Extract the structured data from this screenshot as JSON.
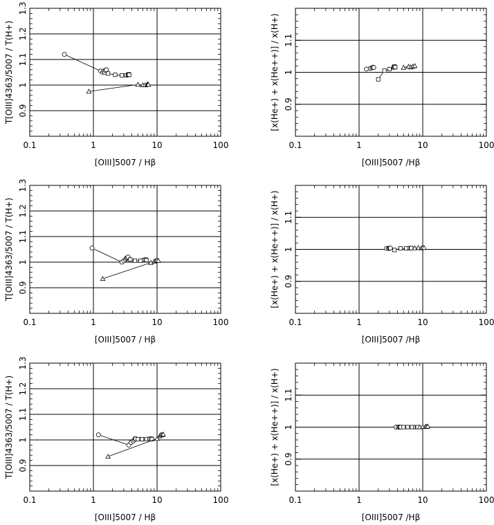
{
  "chart_data": [
    {
      "type": "scatter",
      "xscale": "log",
      "xlim": [
        0.1,
        100
      ],
      "ylim": [
        0.8,
        1.3
      ],
      "xticks": [
        "0.1",
        "1",
        "10",
        "100"
      ],
      "yticks": [
        "0.9",
        "1",
        "1.1",
        "1.2",
        "1.3"
      ],
      "hlines": [
        0.9,
        1.0,
        1.1,
        1.2
      ],
      "vlines": [
        1,
        10
      ],
      "xlabel": "[OIII]5007 / Hβ",
      "ylabel": "T[OIII]4363/5007 / T(H+)",
      "grid": false,
      "series": [
        {
          "marker": "circle",
          "x": [
            0.35,
            1.3,
            1.4,
            1.45,
            1.5,
            1.55,
            1.6
          ],
          "y": [
            1.12,
            1.055,
            1.05,
            1.055,
            1.05,
            1.057,
            1.06
          ]
        },
        {
          "marker": "square",
          "x": [
            1.7,
            2.2,
            2.8,
            3.3,
            3.5,
            3.6,
            3.65
          ],
          "y": [
            1.045,
            1.04,
            1.038,
            1.038,
            1.04,
            1.042,
            1.04
          ]
        },
        {
          "marker": "triangle",
          "x": [
            0.85,
            5.0,
            6.0,
            6.5,
            7.0,
            7.2,
            7.3
          ],
          "y": [
            0.975,
            1.002,
            1.0,
            1.0,
            1.002,
            1.003,
            1.002
          ]
        }
      ]
    },
    {
      "type": "scatter",
      "xscale": "log",
      "xlim": [
        0.1,
        100
      ],
      "ylim": [
        0.8,
        1.2
      ],
      "xticks": [
        "0.1",
        "1",
        "10",
        "100"
      ],
      "yticks": [
        "0.9",
        "1",
        "1.1"
      ],
      "hlines": [
        0.9,
        1.0,
        1.1
      ],
      "vlines": [
        1,
        10
      ],
      "xlabel": "[OIII]5007 /Hβ",
      "ylabel": "[x(He+) + x(He++)] / x(H+)",
      "grid": false,
      "series": [
        {
          "marker": "circle",
          "x": [
            1.3,
            1.5,
            1.6,
            1.65,
            1.7
          ],
          "y": [
            1.01,
            1.012,
            1.014,
            1.016,
            1.015
          ]
        },
        {
          "marker": "square",
          "x": [
            2.0,
            2.5,
            3.0,
            3.5,
            3.6,
            3.7
          ],
          "y": [
            0.978,
            1.005,
            1.01,
            1.015,
            1.018,
            1.016
          ]
        },
        {
          "marker": "triangle",
          "x": [
            5.0,
            6.0,
            6.5,
            7.0,
            7.5
          ],
          "y": [
            1.015,
            1.018,
            1.016,
            1.018,
            1.02
          ]
        }
      ]
    },
    {
      "type": "scatter",
      "xscale": "log",
      "xlim": [
        0.1,
        100
      ],
      "ylim": [
        0.8,
        1.3
      ],
      "xticks": [
        "0.1",
        "1",
        "10",
        "100"
      ],
      "yticks": [
        "0.9",
        "1",
        "1.1",
        "1.2",
        "1.3"
      ],
      "hlines": [
        0.9,
        1.0,
        1.1,
        1.2
      ],
      "vlines": [
        1,
        10
      ],
      "xlabel": "[OIII]5007 / Hβ",
      "ylabel": "T[OIII]4363/5007 / T(H+)",
      "grid": false,
      "series": [
        {
          "marker": "circle",
          "x": [
            0.95,
            2.8,
            3.0,
            3.2,
            3.3,
            3.4,
            3.5
          ],
          "y": [
            1.055,
            1.0,
            1.005,
            1.01,
            1.015,
            1.018,
            1.02
          ]
        },
        {
          "marker": "square",
          "x": [
            3.8,
            4.5,
            5.5,
            6.2,
            6.6,
            6.8
          ],
          "y": [
            1.01,
            1.006,
            1.006,
            1.008,
            1.01,
            1.008
          ]
        },
        {
          "marker": "triangle",
          "x": [
            1.4,
            8.0,
            9.0,
            9.5,
            10.0,
            10.5
          ],
          "y": [
            0.935,
            0.998,
            1.003,
            1.005,
            1.008,
            1.006
          ]
        }
      ]
    },
    {
      "type": "scatter",
      "xscale": "log",
      "xlim": [
        0.1,
        100
      ],
      "ylim": [
        0.8,
        1.2
      ],
      "xticks": [
        "0.1",
        "1",
        "10",
        "100"
      ],
      "yticks": [
        "0.9",
        "1",
        "1.1"
      ],
      "hlines": [
        0.9,
        1.0,
        1.1
      ],
      "vlines": [
        1,
        10
      ],
      "xlabel": "[OIII]5007 /Hβ",
      "ylabel": "[x(He+) + x(He++)] / x(H+)",
      "grid": false,
      "series": [
        {
          "marker": "circle",
          "x": [
            2.7,
            2.9,
            3.0,
            3.05,
            3.1
          ],
          "y": [
            1.003,
            1.003,
            1.004,
            1.003,
            1.004
          ]
        },
        {
          "marker": "square",
          "x": [
            3.6,
            4.5,
            5.5,
            6.2,
            6.5,
            6.6
          ],
          "y": [
            0.998,
            1.003,
            1.003,
            1.004,
            1.004,
            1.004
          ]
        },
        {
          "marker": "triangle",
          "x": [
            7.5,
            8.5,
            9.5,
            10.0,
            10.5
          ],
          "y": [
            1.004,
            1.005,
            1.004,
            1.006,
            1.005
          ]
        }
      ]
    },
    {
      "type": "scatter",
      "xscale": "log",
      "xlim": [
        0.1,
        100
      ],
      "ylim": [
        0.8,
        1.3
      ],
      "xticks": [
        "0.1",
        "1",
        "10",
        "100"
      ],
      "yticks": [
        "0.9",
        "1",
        "1.1",
        "1.2",
        "1.3"
      ],
      "hlines": [
        0.9,
        1.0,
        1.1,
        1.2
      ],
      "vlines": [
        1,
        10
      ],
      "xlabel": "[OIII]5007 / Hβ",
      "ylabel": "T[OIII]4363/5007 / T(H+)",
      "grid": false,
      "series": [
        {
          "marker": "circle",
          "x": [
            1.2,
            3.6,
            3.9,
            4.2,
            4.4,
            4.5,
            4.6
          ],
          "y": [
            1.02,
            0.98,
            0.99,
            0.995,
            1.0,
            1.005,
            1.005
          ]
        },
        {
          "marker": "square",
          "x": [
            5.0,
            5.8,
            6.8,
            7.6,
            8.0,
            8.3
          ],
          "y": [
            1.003,
            1.003,
            1.003,
            1.004,
            1.005,
            1.003
          ]
        },
        {
          "marker": "triangle",
          "x": [
            1.7,
            10.0,
            11.0,
            11.5,
            12.0,
            12.5
          ],
          "y": [
            0.935,
            1.005,
            1.015,
            1.02,
            1.02,
            1.022
          ]
        }
      ]
    },
    {
      "type": "scatter",
      "xscale": "log",
      "xlim": [
        0.1,
        100
      ],
      "ylim": [
        0.8,
        1.2
      ],
      "xticks": [
        "0.1",
        "1",
        "10",
        "100"
      ],
      "yticks": [
        "0.9",
        "1",
        "1.1"
      ],
      "hlines": [
        0.9,
        1.0,
        1.1
      ],
      "vlines": [
        1,
        10
      ],
      "xlabel": "[OIII]5007 /Hβ",
      "ylabel": "[x(He+) + x(He++)] / x(H+)",
      "grid": false,
      "series": [
        {
          "marker": "circle",
          "x": [
            3.8,
            4.1,
            4.3,
            4.4,
            4.5
          ],
          "y": [
            1.0,
            1.0,
            1.0,
            1.0,
            1.0
          ]
        },
        {
          "marker": "square",
          "x": [
            5.0,
            5.8,
            6.8,
            7.6,
            8.1,
            8.3
          ],
          "y": [
            1.0,
            1.0,
            1.0,
            1.0,
            1.0,
            1.0
          ]
        },
        {
          "marker": "triangle",
          "x": [
            9.0,
            10.0,
            11.0,
            11.5,
            12.0
          ],
          "y": [
            1.0,
            1.001,
            1.001,
            1.002,
            1.002
          ]
        }
      ]
    }
  ]
}
